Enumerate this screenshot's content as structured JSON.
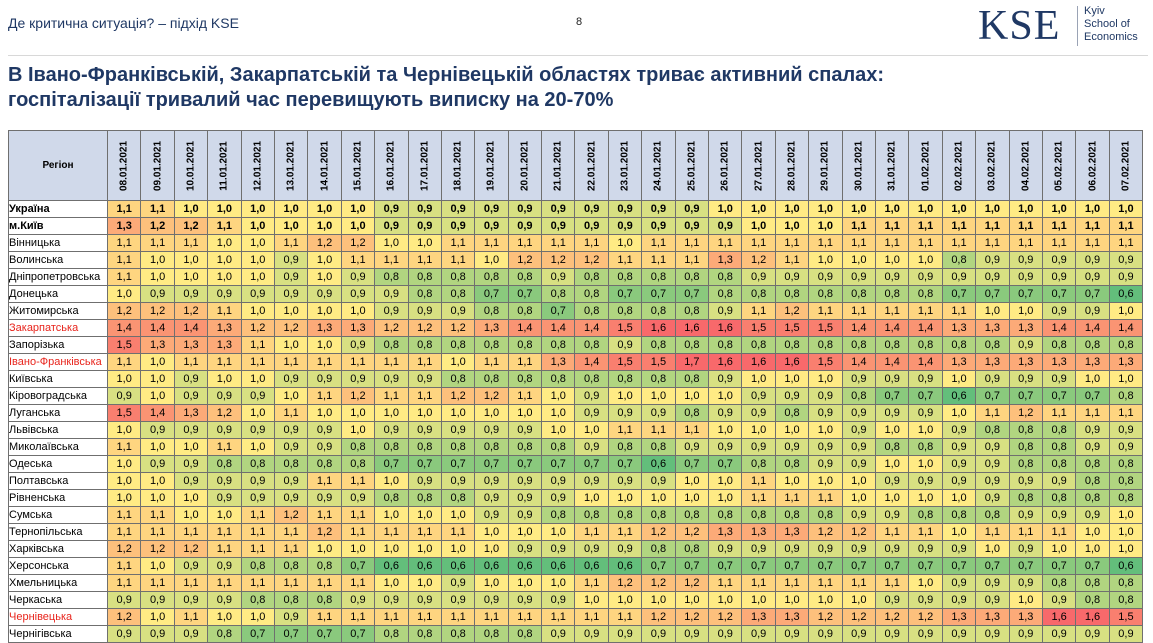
{
  "header": {
    "breadcrumb": "Де критична  ситуація? – підхід KSE",
    "page_number": "8",
    "logo_mark": "KSE",
    "logo_lines": [
      "Kyiv",
      "School of",
      "Economics"
    ]
  },
  "title_lines": [
    "В Івано-Франківській, Закарпатській та Чернівецькій областях триває активний спалах:",
    "госпіталізації тривалий час перевищують виписку на 20-70%"
  ],
  "colors": {
    "low": "#63be7b",
    "mid": "#ffeb84",
    "high": "#f8696b",
    "header_bg": "#d0d9ea",
    "highlight_text": "#e8241c",
    "title": "#1f3864"
  },
  "table": {
    "region_header": "Регіон",
    "dates": [
      "08.01.2021",
      "09.01.2021",
      "10.01.2021",
      "11.01.2021",
      "12.01.2021",
      "13.01.2021",
      "14.01.2021",
      "15.01.2021",
      "16.01.2021",
      "17.01.2021",
      "18.01.2021",
      "19.01.2021",
      "20.01.2021",
      "21.01.2021",
      "22.01.2021",
      "23.01.2021",
      "24.01.2021",
      "25.01.2021",
      "26.01.2021",
      "27.01.2021",
      "28.01.2021",
      "29.01.2021",
      "30.01.2021",
      "31.01.2021",
      "01.02.2021",
      "02.02.2021",
      "03.02.2021",
      "04.02.2021",
      "05.02.2021",
      "06.02.2021",
      "07.02.2021"
    ],
    "rows": [
      {
        "region": "Україна",
        "bold": true,
        "highlight": false,
        "values": [
          "1,1",
          "1,1",
          "1,0",
          "1,0",
          "1,0",
          "1,0",
          "1,0",
          "1,0",
          "0,9",
          "0,9",
          "0,9",
          "0,9",
          "0,9",
          "0,9",
          "0,9",
          "0,9",
          "0,9",
          "0,9",
          "1,0",
          "1,0",
          "1,0",
          "1,0",
          "1,0",
          "1,0",
          "1,0",
          "1,0",
          "1,0",
          "1,0",
          "1,0",
          "1,0",
          "1,0"
        ]
      },
      {
        "region": "м.Київ",
        "bold": true,
        "highlight": false,
        "values": [
          "1,3",
          "1,2",
          "1,2",
          "1,1",
          "1,0",
          "1,0",
          "1,0",
          "1,0",
          "0,9",
          "0,9",
          "0,9",
          "0,9",
          "0,9",
          "0,9",
          "0,9",
          "0,9",
          "0,9",
          "0,9",
          "0,9",
          "1,0",
          "1,0",
          "1,0",
          "1,1",
          "1,1",
          "1,1",
          "1,1",
          "1,1",
          "1,1",
          "1,1",
          "1,1",
          "1,1"
        ]
      },
      {
        "region": "Вінницька",
        "bold": false,
        "highlight": false,
        "values": [
          "1,1",
          "1,1",
          "1,1",
          "1,0",
          "1,0",
          "1,1",
          "1,2",
          "1,2",
          "1,0",
          "1,0",
          "1,1",
          "1,1",
          "1,1",
          "1,1",
          "1,1",
          "1,0",
          "1,1",
          "1,1",
          "1,1",
          "1,1",
          "1,1",
          "1,1",
          "1,1",
          "1,1",
          "1,1",
          "1,1",
          "1,1",
          "1,1",
          "1,1",
          "1,1",
          "1,1"
        ]
      },
      {
        "region": "Волинська",
        "bold": false,
        "highlight": false,
        "values": [
          "1,1",
          "1,0",
          "1,0",
          "1,0",
          "1,0",
          "0,9",
          "1,0",
          "1,1",
          "1,1",
          "1,1",
          "1,1",
          "1,0",
          "1,2",
          "1,2",
          "1,2",
          "1,1",
          "1,1",
          "1,1",
          "1,3",
          "1,2",
          "1,1",
          "1,0",
          "1,0",
          "1,0",
          "1,0",
          "0,8",
          "0,9",
          "0,9",
          "0,9",
          "0,9",
          "0,9"
        ]
      },
      {
        "region": "Дніпропетровська",
        "bold": false,
        "highlight": false,
        "values": [
          "1,1",
          "1,0",
          "1,0",
          "1,0",
          "1,0",
          "0,9",
          "1,0",
          "0,9",
          "0,8",
          "0,8",
          "0,8",
          "0,8",
          "0,8",
          "0,9",
          "0,8",
          "0,8",
          "0,8",
          "0,8",
          "0,8",
          "0,9",
          "0,9",
          "0,9",
          "0,9",
          "0,9",
          "0,9",
          "0,9",
          "0,9",
          "0,9",
          "0,9",
          "0,9",
          "0,9"
        ]
      },
      {
        "region": "Донецька",
        "bold": false,
        "highlight": false,
        "values": [
          "1,0",
          "0,9",
          "0,9",
          "0,9",
          "0,9",
          "0,9",
          "0,9",
          "0,9",
          "0,9",
          "0,8",
          "0,8",
          "0,7",
          "0,7",
          "0,8",
          "0,8",
          "0,7",
          "0,7",
          "0,7",
          "0,8",
          "0,8",
          "0,8",
          "0,8",
          "0,8",
          "0,8",
          "0,8",
          "0,7",
          "0,7",
          "0,7",
          "0,7",
          "0,7",
          "0,6"
        ]
      },
      {
        "region": "Житомирська",
        "bold": false,
        "highlight": false,
        "values": [
          "1,2",
          "1,2",
          "1,2",
          "1,1",
          "1,0",
          "1,0",
          "1,0",
          "1,0",
          "0,9",
          "0,9",
          "0,9",
          "0,8",
          "0,8",
          "0,7",
          "0,8",
          "0,8",
          "0,8",
          "0,8",
          "0,9",
          "1,1",
          "1,2",
          "1,1",
          "1,1",
          "1,1",
          "1,1",
          "1,1",
          "1,0",
          "1,0",
          "0,9",
          "0,9",
          "1,0"
        ]
      },
      {
        "region": "Закарпатська",
        "bold": false,
        "highlight": true,
        "values": [
          "1,4",
          "1,4",
          "1,4",
          "1,3",
          "1,2",
          "1,2",
          "1,3",
          "1,3",
          "1,2",
          "1,2",
          "1,2",
          "1,3",
          "1,4",
          "1,4",
          "1,4",
          "1,5",
          "1,6",
          "1,6",
          "1,6",
          "1,5",
          "1,5",
          "1,5",
          "1,4",
          "1,4",
          "1,4",
          "1,3",
          "1,3",
          "1,3",
          "1,4",
          "1,4",
          "1,4"
        ]
      },
      {
        "region": "Запорізька",
        "bold": false,
        "highlight": false,
        "values": [
          "1,5",
          "1,3",
          "1,3",
          "1,3",
          "1,1",
          "1,0",
          "1,0",
          "0,9",
          "0,8",
          "0,8",
          "0,8",
          "0,8",
          "0,8",
          "0,8",
          "0,8",
          "0,9",
          "0,8",
          "0,8",
          "0,8",
          "0,8",
          "0,8",
          "0,8",
          "0,8",
          "0,8",
          "0,8",
          "0,8",
          "0,8",
          "0,9",
          "0,8",
          "0,8",
          "0,8"
        ]
      },
      {
        "region": "Івано-Франківська",
        "bold": false,
        "highlight": true,
        "values": [
          "1,1",
          "1,0",
          "1,1",
          "1,1",
          "1,1",
          "1,1",
          "1,1",
          "1,1",
          "1,1",
          "1,1",
          "1,0",
          "1,1",
          "1,1",
          "1,3",
          "1,4",
          "1,5",
          "1,5",
          "1,7",
          "1,6",
          "1,6",
          "1,6",
          "1,5",
          "1,4",
          "1,4",
          "1,4",
          "1,3",
          "1,3",
          "1,3",
          "1,3",
          "1,3",
          "1,3"
        ]
      },
      {
        "region": "Київська",
        "bold": false,
        "highlight": false,
        "values": [
          "1,0",
          "1,0",
          "0,9",
          "1,0",
          "1,0",
          "0,9",
          "0,9",
          "0,9",
          "0,9",
          "0,9",
          "0,8",
          "0,8",
          "0,8",
          "0,8",
          "0,8",
          "0,8",
          "0,8",
          "0,8",
          "0,9",
          "1,0",
          "1,0",
          "1,0",
          "0,9",
          "0,9",
          "0,9",
          "1,0",
          "0,9",
          "0,9",
          "0,9",
          "1,0",
          "1,0"
        ]
      },
      {
        "region": "Кіровоградська",
        "bold": false,
        "highlight": false,
        "values": [
          "0,9",
          "1,0",
          "0,9",
          "0,9",
          "0,9",
          "1,0",
          "1,1",
          "1,2",
          "1,1",
          "1,1",
          "1,2",
          "1,2",
          "1,1",
          "1,0",
          "0,9",
          "1,0",
          "1,0",
          "1,0",
          "1,0",
          "0,9",
          "0,9",
          "0,9",
          "0,8",
          "0,7",
          "0,7",
          "0,6",
          "0,7",
          "0,7",
          "0,7",
          "0,7",
          "0,8"
        ]
      },
      {
        "region": "Луганська",
        "bold": false,
        "highlight": false,
        "values": [
          "1,5",
          "1,4",
          "1,3",
          "1,2",
          "1,0",
          "1,1",
          "1,0",
          "1,0",
          "1,0",
          "1,0",
          "1,0",
          "1,0",
          "1,0",
          "1,0",
          "0,9",
          "0,9",
          "0,9",
          "0,8",
          "0,9",
          "0,9",
          "0,8",
          "0,9",
          "0,9",
          "0,9",
          "0,9",
          "1,0",
          "1,1",
          "1,2",
          "1,1",
          "1,1",
          "1,1"
        ]
      },
      {
        "region": "Львівська",
        "bold": false,
        "highlight": false,
        "values": [
          "1,0",
          "0,9",
          "0,9",
          "0,9",
          "0,9",
          "0,9",
          "0,9",
          "1,0",
          "0,9",
          "0,9",
          "0,9",
          "0,9",
          "0,9",
          "1,0",
          "1,0",
          "1,1",
          "1,1",
          "1,1",
          "1,0",
          "1,0",
          "1,0",
          "1,0",
          "0,9",
          "1,0",
          "1,0",
          "0,9",
          "0,8",
          "0,8",
          "0,8",
          "0,9",
          "0,9"
        ]
      },
      {
        "region": "Миколаївська",
        "bold": false,
        "highlight": false,
        "values": [
          "1,1",
          "1,0",
          "1,0",
          "1,1",
          "1,0",
          "0,9",
          "0,9",
          "0,8",
          "0,8",
          "0,8",
          "0,8",
          "0,8",
          "0,8",
          "0,8",
          "0,9",
          "0,8",
          "0,8",
          "0,9",
          "0,9",
          "0,9",
          "0,9",
          "0,9",
          "0,9",
          "0,8",
          "0,8",
          "0,9",
          "0,9",
          "0,8",
          "0,8",
          "0,9",
          "0,9"
        ]
      },
      {
        "region": "Одеська",
        "bold": false,
        "highlight": false,
        "values": [
          "1,0",
          "0,9",
          "0,9",
          "0,8",
          "0,8",
          "0,8",
          "0,8",
          "0,8",
          "0,7",
          "0,7",
          "0,7",
          "0,7",
          "0,7",
          "0,7",
          "0,7",
          "0,7",
          "0,6",
          "0,7",
          "0,7",
          "0,8",
          "0,8",
          "0,9",
          "0,9",
          "1,0",
          "1,0",
          "0,9",
          "0,9",
          "0,8",
          "0,8",
          "0,8",
          "0,8"
        ]
      },
      {
        "region": "Полтавська",
        "bold": false,
        "highlight": false,
        "values": [
          "1,0",
          "1,0",
          "0,9",
          "0,9",
          "0,9",
          "0,9",
          "1,1",
          "1,1",
          "1,0",
          "0,9",
          "0,9",
          "0,9",
          "0,9",
          "0,9",
          "0,9",
          "0,9",
          "0,9",
          "1,0",
          "1,0",
          "1,1",
          "1,0",
          "1,0",
          "1,0",
          "0,9",
          "0,9",
          "0,9",
          "0,9",
          "0,9",
          "0,9",
          "0,8",
          "0,8"
        ]
      },
      {
        "region": "Рівненська",
        "bold": false,
        "highlight": false,
        "values": [
          "1,0",
          "1,0",
          "1,0",
          "0,9",
          "0,9",
          "0,9",
          "0,9",
          "0,9",
          "0,8",
          "0,8",
          "0,8",
          "0,9",
          "0,9",
          "0,9",
          "1,0",
          "1,0",
          "1,0",
          "1,0",
          "1,0",
          "1,1",
          "1,1",
          "1,1",
          "1,0",
          "1,0",
          "1,0",
          "1,0",
          "0,9",
          "0,8",
          "0,8",
          "0,8",
          "0,8"
        ]
      },
      {
        "region": "Сумська",
        "bold": false,
        "highlight": false,
        "values": [
          "1,1",
          "1,1",
          "1,0",
          "1,0",
          "1,1",
          "1,2",
          "1,1",
          "1,1",
          "1,0",
          "1,0",
          "1,0",
          "0,9",
          "0,9",
          "0,8",
          "0,8",
          "0,8",
          "0,8",
          "0,8",
          "0,8",
          "0,8",
          "0,8",
          "0,8",
          "0,9",
          "0,9",
          "0,8",
          "0,8",
          "0,8",
          "0,9",
          "0,9",
          "0,9",
          "1,0"
        ]
      },
      {
        "region": "Тернопільська",
        "bold": false,
        "highlight": false,
        "values": [
          "1,1",
          "1,1",
          "1,1",
          "1,1",
          "1,1",
          "1,1",
          "1,2",
          "1,1",
          "1,1",
          "1,1",
          "1,1",
          "1,0",
          "1,0",
          "1,0",
          "1,1",
          "1,1",
          "1,2",
          "1,2",
          "1,3",
          "1,3",
          "1,3",
          "1,2",
          "1,2",
          "1,1",
          "1,1",
          "1,0",
          "1,1",
          "1,1",
          "1,1",
          "1,0",
          "1,0"
        ]
      },
      {
        "region": "Харківська",
        "bold": false,
        "highlight": false,
        "values": [
          "1,2",
          "1,2",
          "1,2",
          "1,1",
          "1,1",
          "1,1",
          "1,0",
          "1,0",
          "1,0",
          "1,0",
          "1,0",
          "1,0",
          "0,9",
          "0,9",
          "0,9",
          "0,9",
          "0,8",
          "0,8",
          "0,9",
          "0,9",
          "0,9",
          "0,9",
          "0,9",
          "0,9",
          "0,9",
          "0,9",
          "1,0",
          "0,9",
          "1,0",
          "1,0",
          "1,0"
        ]
      },
      {
        "region": "Херсонська",
        "bold": false,
        "highlight": false,
        "values": [
          "1,1",
          "1,0",
          "0,9",
          "0,9",
          "0,8",
          "0,8",
          "0,8",
          "0,7",
          "0,6",
          "0,6",
          "0,6",
          "0,6",
          "0,6",
          "0,6",
          "0,6",
          "0,6",
          "0,7",
          "0,7",
          "0,7",
          "0,7",
          "0,7",
          "0,7",
          "0,7",
          "0,7",
          "0,7",
          "0,7",
          "0,7",
          "0,7",
          "0,7",
          "0,7",
          "0,6"
        ]
      },
      {
        "region": "Хмельницька",
        "bold": false,
        "highlight": false,
        "values": [
          "1,1",
          "1,1",
          "1,1",
          "1,1",
          "1,1",
          "1,1",
          "1,1",
          "1,1",
          "1,0",
          "1,0",
          "0,9",
          "1,0",
          "1,0",
          "1,0",
          "1,1",
          "1,2",
          "1,2",
          "1,2",
          "1,1",
          "1,1",
          "1,1",
          "1,1",
          "1,1",
          "1,1",
          "1,0",
          "0,9",
          "0,9",
          "0,9",
          "0,8",
          "0,8",
          "0,8"
        ]
      },
      {
        "region": "Черкаська",
        "bold": false,
        "highlight": false,
        "values": [
          "0,9",
          "0,9",
          "0,9",
          "0,9",
          "0,8",
          "0,8",
          "0,8",
          "0,9",
          "0,9",
          "0,9",
          "0,9",
          "0,9",
          "0,9",
          "0,9",
          "1,0",
          "1,0",
          "1,0",
          "1,0",
          "1,0",
          "1,0",
          "1,0",
          "1,0",
          "1,0",
          "0,9",
          "0,9",
          "0,9",
          "0,9",
          "1,0",
          "0,9",
          "0,8",
          "0,8"
        ]
      },
      {
        "region": "Чернівецька",
        "bold": false,
        "highlight": true,
        "values": [
          "1,2",
          "1,0",
          "1,1",
          "1,0",
          "1,0",
          "0,9",
          "1,1",
          "1,1",
          "1,1",
          "1,1",
          "1,1",
          "1,1",
          "1,1",
          "1,1",
          "1,1",
          "1,1",
          "1,2",
          "1,2",
          "1,2",
          "1,3",
          "1,3",
          "1,2",
          "1,2",
          "1,2",
          "1,2",
          "1,3",
          "1,3",
          "1,3",
          "1,6",
          "1,6",
          "1,5"
        ]
      },
      {
        "region": "Чернігівська",
        "bold": false,
        "highlight": false,
        "values": [
          "0,9",
          "0,9",
          "0,9",
          "0,8",
          "0,7",
          "0,7",
          "0,7",
          "0,7",
          "0,8",
          "0,8",
          "0,8",
          "0,8",
          "0,8",
          "0,9",
          "0,9",
          "0,9",
          "0,9",
          "0,9",
          "0,9",
          "0,9",
          "0,9",
          "0,9",
          "0,9",
          "0,9",
          "0,9",
          "0,9",
          "0,9",
          "0,9",
          "0,9",
          "0,9",
          "0,9"
        ]
      }
    ]
  }
}
